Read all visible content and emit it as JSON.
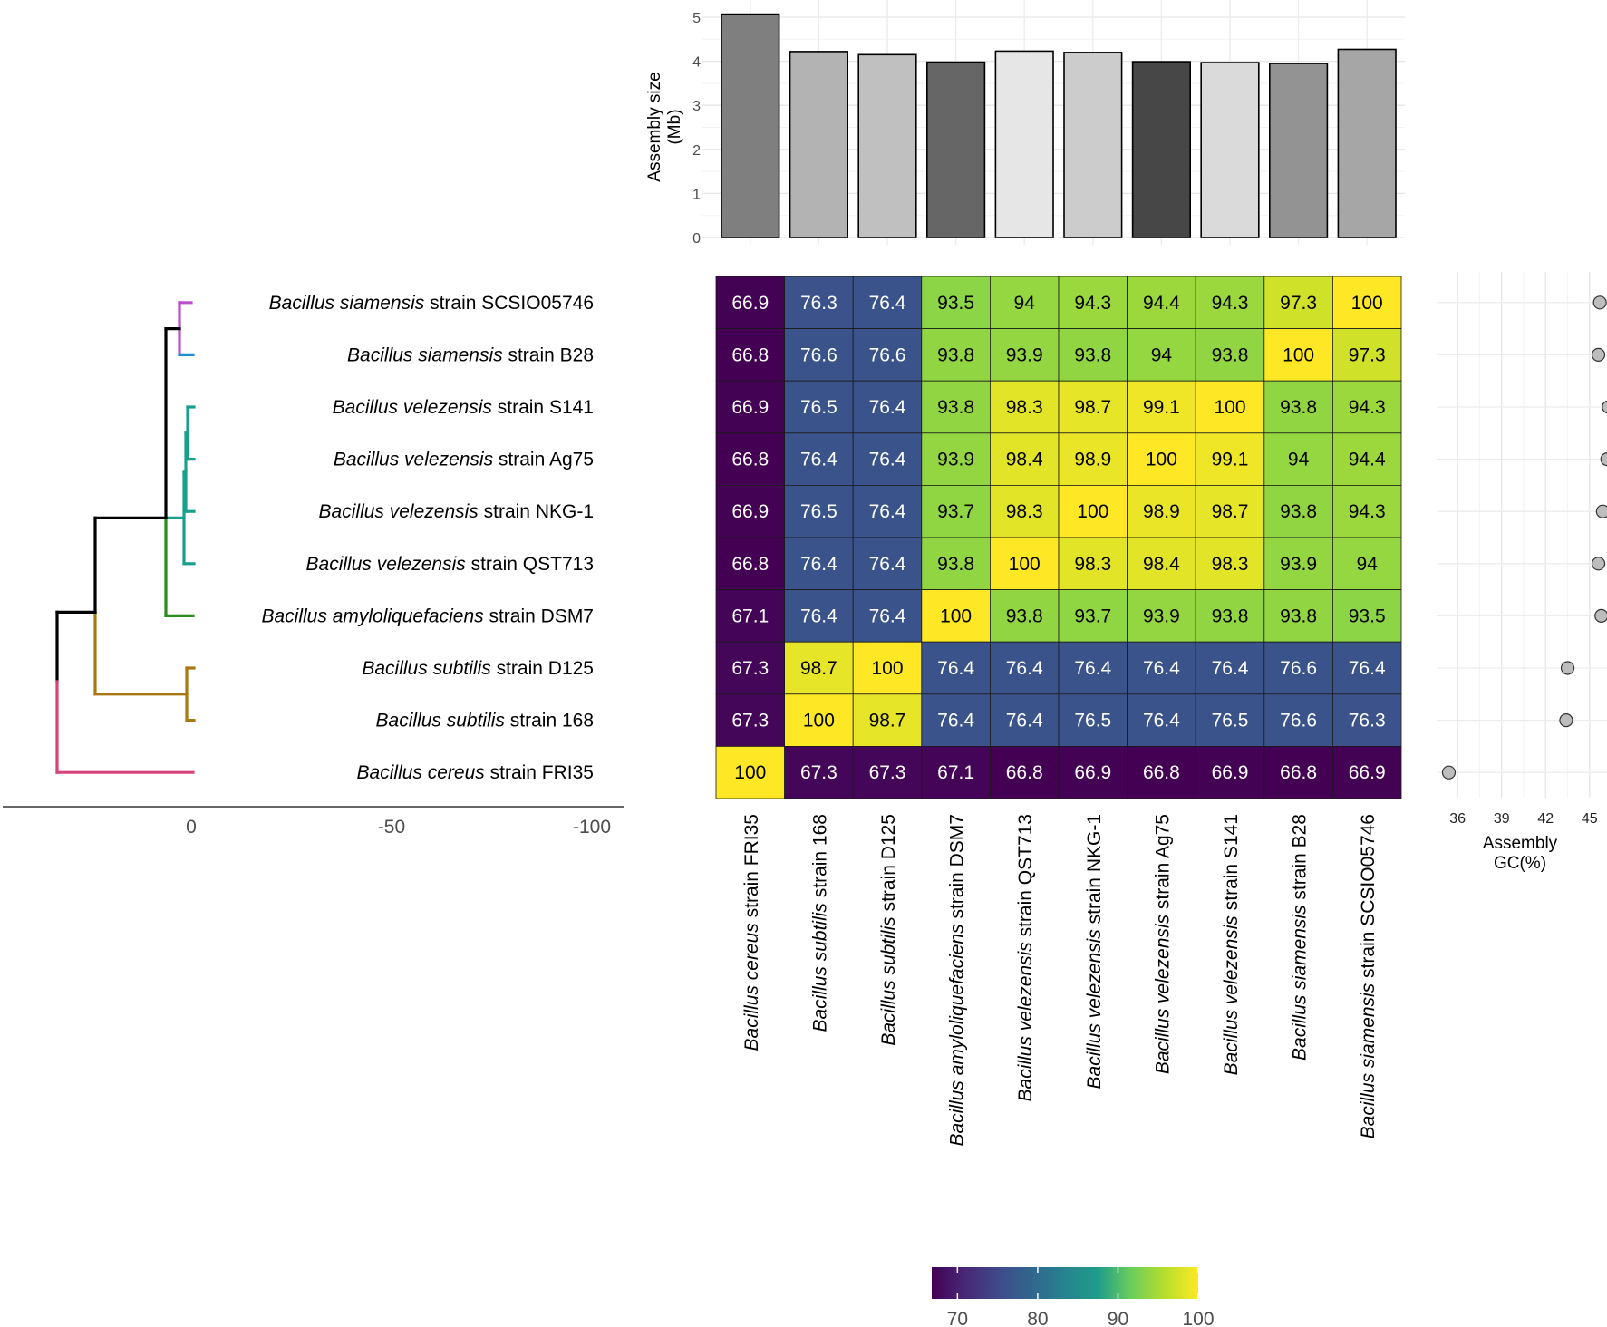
{
  "strains": [
    {
      "genus": "Bacillus",
      "species": "cereus",
      "strain_word": "strain",
      "strain": "FRI35"
    },
    {
      "genus": "Bacillus",
      "species": "subtilis",
      "strain_word": "strain",
      "strain": "168"
    },
    {
      "genus": "Bacillus",
      "species": "subtilis",
      "strain_word": "strain",
      "strain": "D125"
    },
    {
      "genus": "Bacillus",
      "species": "amyloliquefaciens",
      "strain_word": "strain",
      "strain": "DSM7"
    },
    {
      "genus": "Bacillus",
      "species": "velezensis",
      "strain_word": "strain",
      "strain": "QST713"
    },
    {
      "genus": "Bacillus",
      "species": "velezensis",
      "strain_word": "strain",
      "strain": "NKG-1"
    },
    {
      "genus": "Bacillus",
      "species": "velezensis",
      "strain_word": "strain",
      "strain": "Ag75"
    },
    {
      "genus": "Bacillus",
      "species": "velezensis",
      "strain_word": "strain",
      "strain": "S141"
    },
    {
      "genus": "Bacillus",
      "species": "siamensis",
      "strain_word": "strain",
      "strain": "B28"
    },
    {
      "genus": "Bacillus",
      "species": "siamensis",
      "strain_word": "strain",
      "strain": "SCSIO05746"
    }
  ],
  "chart_data": [
    {
      "type": "heatmap",
      "note_rows": "rows listed top to bottom; row i and column j index into strains[]",
      "row_order": [
        9,
        8,
        7,
        6,
        5,
        4,
        3,
        2,
        1,
        0
      ],
      "col_order": [
        0,
        1,
        2,
        3,
        4,
        5,
        6,
        7,
        8,
        9
      ],
      "values": [
        [
          66.9,
          76.3,
          76.4,
          93.5,
          94,
          94.3,
          94.4,
          94.3,
          97.3,
          100
        ],
        [
          66.8,
          76.6,
          76.6,
          93.8,
          93.9,
          93.8,
          94,
          93.8,
          100,
          97.3
        ],
        [
          66.9,
          76.5,
          76.4,
          93.8,
          98.3,
          98.7,
          99.1,
          100,
          93.8,
          94.3
        ],
        [
          66.8,
          76.4,
          76.4,
          93.9,
          98.4,
          98.9,
          100,
          99.1,
          94,
          94.4
        ],
        [
          66.9,
          76.5,
          76.4,
          93.7,
          98.3,
          100,
          98.9,
          98.7,
          93.8,
          94.3
        ],
        [
          66.8,
          76.4,
          76.4,
          93.8,
          100,
          98.3,
          98.4,
          98.3,
          93.9,
          94
        ],
        [
          67.1,
          76.4,
          76.4,
          100,
          93.8,
          93.7,
          93.9,
          93.8,
          93.8,
          93.5
        ],
        [
          67.3,
          98.7,
          100,
          76.4,
          76.4,
          76.4,
          76.4,
          76.4,
          76.6,
          76.4
        ],
        [
          67.3,
          100,
          98.7,
          76.4,
          76.4,
          76.5,
          76.4,
          76.5,
          76.6,
          76.3
        ],
        [
          100,
          67.3,
          67.3,
          67.1,
          66.8,
          66.9,
          66.8,
          66.9,
          66.8,
          66.9
        ]
      ],
      "colorscale": "viridis",
      "color_range": [
        66.8,
        100
      ],
      "colorbar_ticks": [
        70,
        80,
        90,
        100
      ]
    },
    {
      "type": "bar",
      "ylabel": "Assembly size\n(Mb)",
      "ylim": [
        0,
        5.2
      ],
      "yticks": [
        0,
        1,
        2,
        3,
        4,
        5
      ],
      "grid": true,
      "values": [
        5.07,
        4.22,
        4.15,
        3.98,
        4.23,
        4.2,
        3.99,
        3.97,
        3.95,
        4.27
      ],
      "fill_colors": [
        "#7f7f7f",
        "#b3b3b3",
        "#c0c0c0",
        "#666666",
        "#e6e6e6",
        "#cccccc",
        "#474747",
        "#dadada",
        "#939393",
        "#a6a6a6"
      ]
    },
    {
      "type": "scatter",
      "xlabel": "Assembly\nGC(%)",
      "xlim": [
        35,
        46
      ],
      "xticks": [
        36,
        39,
        42,
        45
      ],
      "grid": true,
      "note_rows": "values in same top-to-bottom row order as heatmap",
      "values": [
        45.7,
        45.6,
        46.3,
        46.2,
        45.9,
        45.6,
        45.8,
        43.5,
        43.4,
        35.4
      ]
    },
    {
      "type": "tree",
      "xticks": [
        0,
        -50,
        -100
      ],
      "note": "dendrogram of the heatmap rows; x axis reversed",
      "branch_colors": {
        "siamensis_SCSIO05746": "#b94fcf",
        "siamensis_B28": "#1f8fd6",
        "velezensis": "#18a08c",
        "amyloliquefaciens": "#2d8a1e",
        "subtilis": "#a87912",
        "cereus": "#d6457a",
        "internal": "#000000"
      }
    }
  ]
}
